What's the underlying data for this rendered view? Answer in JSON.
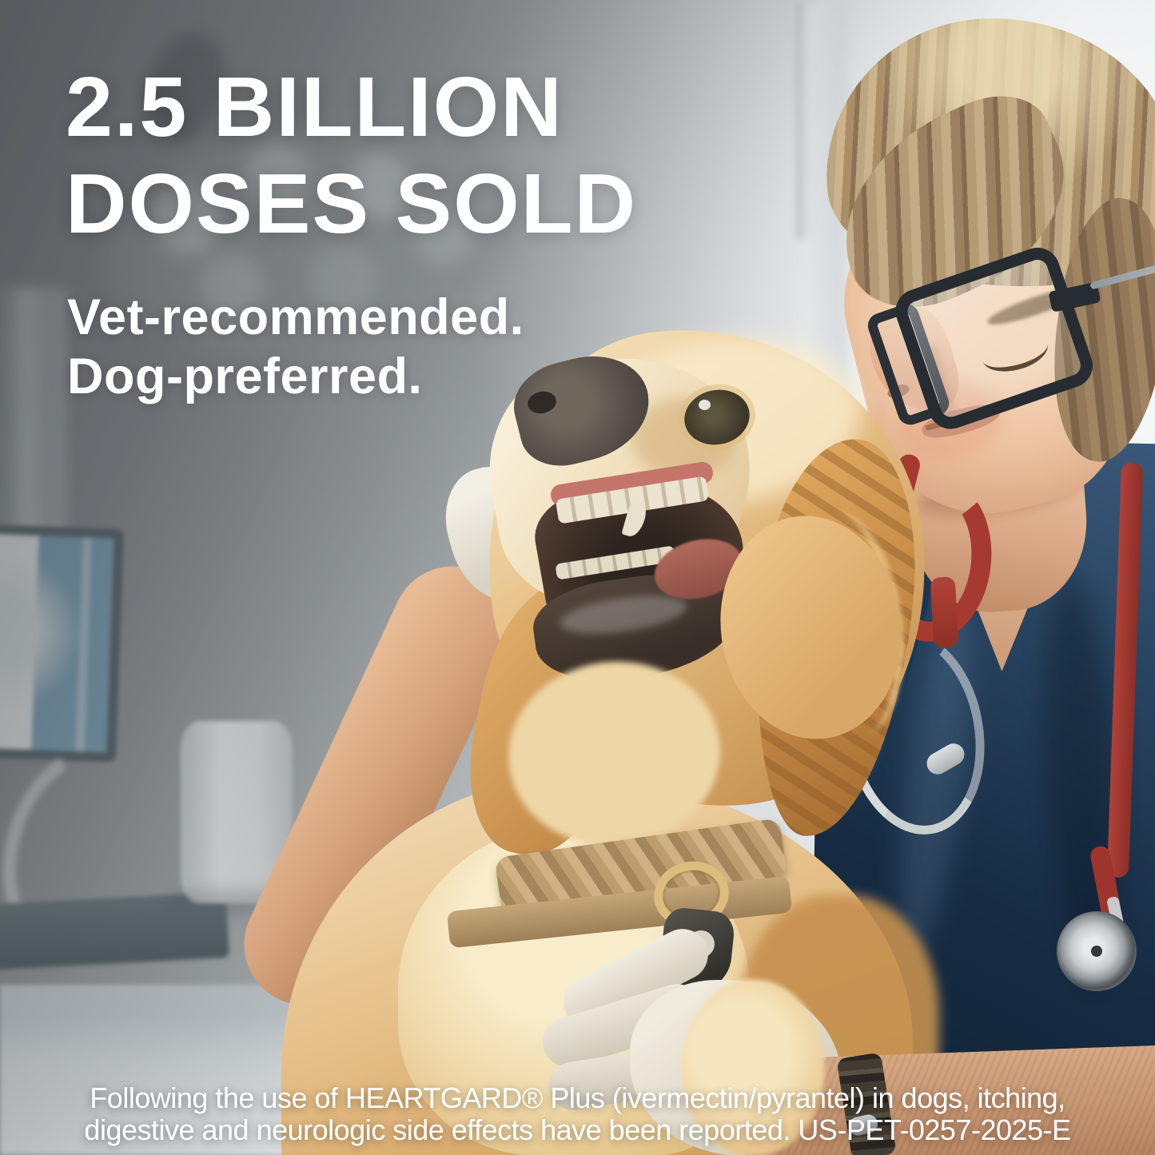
{
  "scene": {
    "description": "Smiling young veterinarian in dark navy scrubs, glasses and a red stethoscope pets a golden retriever on an exam table in a bright veterinary clinic; a surgical lamp and an X-ray monitor are blurred in the background.",
    "subjects": [
      "veterinarian",
      "golden-retriever-dog"
    ],
    "setting": "veterinary-clinic-exam-room"
  },
  "overlay": {
    "headline": {
      "line1": "2.5 BILLION",
      "line2": "DOSES SOLD"
    },
    "subheadline": {
      "line1": "Vet-recommended.",
      "line2": "Dog-preferred."
    },
    "disclaimer": {
      "line1": "Following the use of HEARTGARD® Plus (ivermectin/pyrantel) in dogs, itching,",
      "line2": "digestive and neurologic side effects have been reported. US-PET-0257-2025-E"
    },
    "brand_mentioned": "HEARTGARD Plus (ivermectin/pyrantel)",
    "reference_code": "US-PET-0257-2025-E",
    "text_color": "#ffffff"
  },
  "palette": {
    "background_top_left_gray": "#75797c",
    "background_right_light": "#e9eced",
    "scrub_navy": "#172c44",
    "stethoscope_red": "#a63a30",
    "dog_fur_golden": "#d9a968",
    "dog_fur_cream": "#f3debc",
    "glove_white": "#e9e3d6",
    "skin_tone": "#ddad8b",
    "hair_sandy": "#b49a76",
    "xray_screen_blue": "#7ea6bc"
  }
}
